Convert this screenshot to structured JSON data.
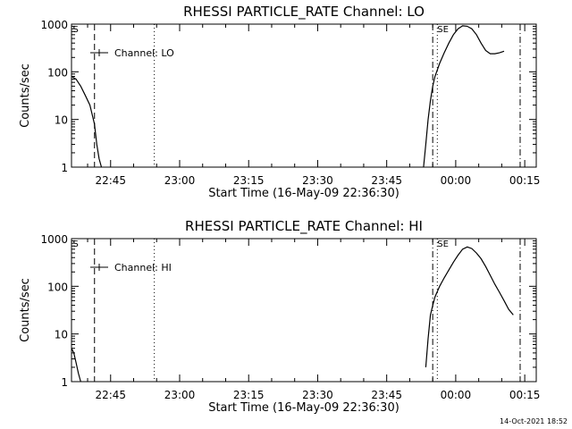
{
  "timestamp": "14-Oct-2021 18:52",
  "chart_data": [
    {
      "type": "line",
      "title": "RHESSI PARTICLE_RATE Channel: LO",
      "xlabel": "Start Time (16-May-09 22:36:30)",
      "ylabel": "Counts/sec",
      "yscale": "log",
      "xlim_minutes": [
        0,
        101
      ],
      "ylim": [
        1,
        1000
      ],
      "xticks": [
        {
          "m": 8.5,
          "label": "22:45"
        },
        {
          "m": 23.5,
          "label": "23:00"
        },
        {
          "m": 38.5,
          "label": "23:15"
        },
        {
          "m": 53.5,
          "label": "23:30"
        },
        {
          "m": 68.5,
          "label": "23:45"
        },
        {
          "m": 83.5,
          "label": "00:00"
        },
        {
          "m": 98.5,
          "label": "00:15"
        }
      ],
      "yticks": [
        {
          "v": 1,
          "label": "1"
        },
        {
          "v": 10,
          "label": "10"
        },
        {
          "v": 100,
          "label": "100"
        },
        {
          "v": 1000,
          "label": "1000"
        }
      ],
      "legend": {
        "label": "Channel: LO",
        "position": "top-left"
      },
      "series": [
        {
          "name": "Channel: LO",
          "segments": [
            [
              [
                0,
                80
              ],
              [
                1,
                70
              ],
              [
                2,
                50
              ],
              [
                3,
                32
              ],
              [
                4,
                20
              ],
              [
                5,
                8
              ],
              [
                5.5,
                3
              ],
              [
                6,
                1.5
              ],
              [
                6.5,
                1
              ]
            ],
            [
              [
                76.5,
                1
              ],
              [
                77,
                3
              ],
              [
                77.5,
                10
              ],
              [
                78,
                25
              ],
              [
                78.5,
                50
              ],
              [
                79,
                80
              ],
              [
                80,
                150
              ],
              [
                81,
                250
              ],
              [
                82,
                400
              ],
              [
                83,
                600
              ],
              [
                84,
                800
              ],
              [
                85,
                920
              ],
              [
                86,
                900
              ],
              [
                87,
                800
              ],
              [
                88,
                600
              ],
              [
                89,
                400
              ],
              [
                90,
                280
              ],
              [
                91,
                240
              ],
              [
                92,
                240
              ],
              [
                93,
                250
              ],
              [
                94,
                270
              ]
            ]
          ]
        }
      ],
      "vlines": [
        {
          "m": 5,
          "style": "dashed"
        },
        {
          "m": 18,
          "style": "dotted"
        },
        {
          "m": 78.5,
          "style": "dashdot"
        },
        {
          "m": 79.5,
          "style": "dotted"
        },
        {
          "m": 97.5,
          "style": "dashdot"
        }
      ],
      "markers": [
        {
          "m": 0.3,
          "label": "S"
        },
        {
          "m": 79.5,
          "label": "SE"
        }
      ]
    },
    {
      "type": "line",
      "title": "RHESSI PARTICLE_RATE Channel: HI",
      "xlabel": "Start Time (16-May-09 22:36:30)",
      "ylabel": "Counts/sec",
      "yscale": "log",
      "xlim_minutes": [
        0,
        101
      ],
      "ylim": [
        1,
        1000
      ],
      "xticks": [
        {
          "m": 8.5,
          "label": "22:45"
        },
        {
          "m": 23.5,
          "label": "23:00"
        },
        {
          "m": 38.5,
          "label": "23:15"
        },
        {
          "m": 53.5,
          "label": "23:30"
        },
        {
          "m": 68.5,
          "label": "23:45"
        },
        {
          "m": 83.5,
          "label": "00:00"
        },
        {
          "m": 98.5,
          "label": "00:15"
        }
      ],
      "yticks": [
        {
          "v": 1,
          "label": "1"
        },
        {
          "v": 10,
          "label": "10"
        },
        {
          "v": 100,
          "label": "100"
        },
        {
          "v": 1000,
          "label": "1000"
        }
      ],
      "legend": {
        "label": "Channel: HI",
        "position": "top-left"
      },
      "series": [
        {
          "name": "Channel: HI",
          "segments": [
            [
              [
                0,
                5
              ],
              [
                0.5,
                4
              ],
              [
                1,
                2.5
              ],
              [
                1.5,
                1.5
              ],
              [
                2,
                1
              ]
            ],
            [
              [
                77,
                2
              ],
              [
                77.5,
                8
              ],
              [
                78,
                25
              ],
              [
                78.5,
                40
              ],
              [
                79,
                60
              ],
              [
                80,
                100
              ],
              [
                81,
                150
              ],
              [
                82,
                220
              ],
              [
                83,
                320
              ],
              [
                84,
                450
              ],
              [
                85,
                600
              ],
              [
                86,
                670
              ],
              [
                87,
                620
              ],
              [
                88,
                500
              ],
              [
                89,
                380
              ],
              [
                90,
                260
              ],
              [
                91,
                170
              ],
              [
                92,
                110
              ],
              [
                93,
                75
              ],
              [
                94,
                50
              ],
              [
                95,
                33
              ],
              [
                96,
                25
              ]
            ]
          ]
        }
      ],
      "vlines": [
        {
          "m": 5,
          "style": "dashed"
        },
        {
          "m": 18,
          "style": "dotted"
        },
        {
          "m": 78.5,
          "style": "dashdot"
        },
        {
          "m": 79.5,
          "style": "dotted"
        },
        {
          "m": 97.5,
          "style": "dashdot"
        }
      ],
      "markers": [
        {
          "m": 0.3,
          "label": "S"
        },
        {
          "m": 79.5,
          "label": "SE"
        }
      ]
    }
  ]
}
